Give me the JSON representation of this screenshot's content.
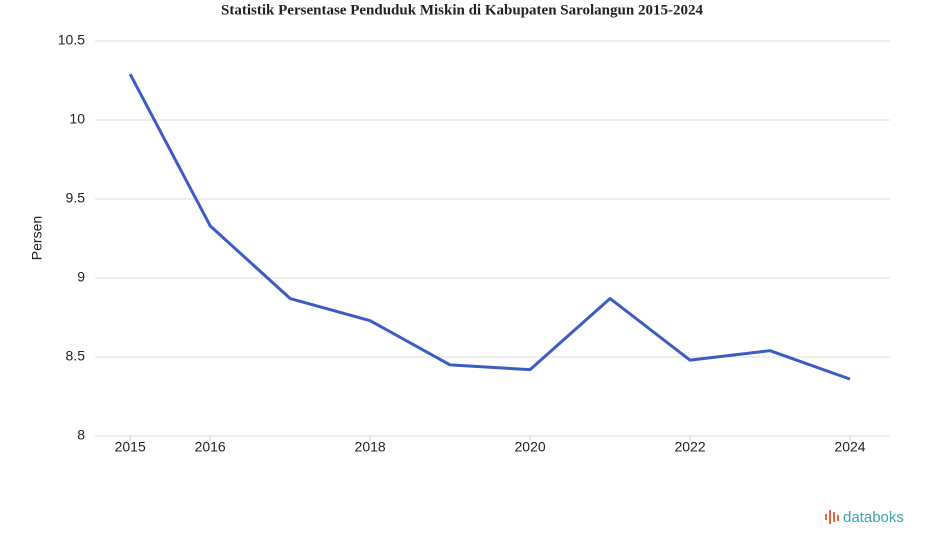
{
  "chart_data": {
    "type": "line",
    "title": "Statistik Persentase Penduduk Miskin di Kabupaten Sarolangun 2015-2024",
    "y_label": "Persen",
    "x": [
      2015,
      2016,
      2017,
      2018,
      2019,
      2020,
      2021,
      2022,
      2023,
      2024
    ],
    "series": [
      {
        "name": "Persen",
        "color": "#3b5cc4",
        "values": [
          10.29,
          9.33,
          8.87,
          8.73,
          8.45,
          8.42,
          8.87,
          8.48,
          8.54,
          8.36
        ]
      }
    ],
    "xlim": [
      2014.56,
      2024.5
    ],
    "xticks": [
      2015,
      2016,
      2018,
      2020,
      2022,
      2024
    ],
    "ylim": [
      8,
      10.5
    ],
    "yticks": [
      8,
      8.5,
      9,
      9.5,
      10,
      10.5
    ],
    "grid": true,
    "watermark": "databoks"
  }
}
